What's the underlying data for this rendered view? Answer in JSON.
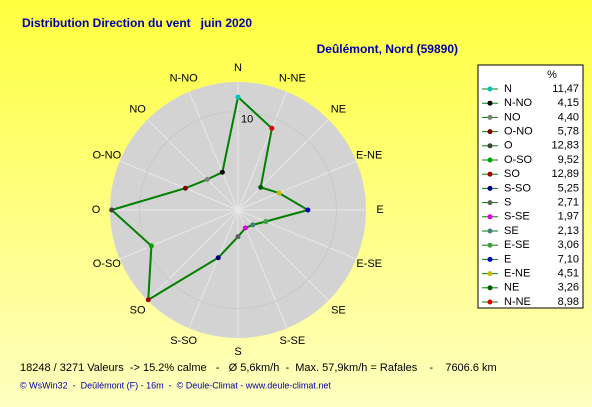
{
  "chart_data": {
    "type": "radar",
    "title": "Distribution Direction du vent   juin 2020",
    "subtitle": "Deûlémont, Nord (59890)",
    "legend_header": "%",
    "categories": [
      "N",
      "N-NO",
      "NO",
      "O-NO",
      "O",
      "O-SO",
      "SO",
      "S-SO",
      "S",
      "S-SE",
      "SE",
      "E-SE",
      "E",
      "E-NE",
      "NE",
      "N-NE"
    ],
    "values": [
      11.47,
      4.15,
      4.4,
      5.78,
      12.83,
      9.52,
      12.89,
      5.25,
      2.71,
      1.97,
      2.13,
      3.06,
      7.1,
      4.51,
      3.26,
      8.98
    ],
    "value_labels": [
      "11,47",
      "4,15",
      "4,40",
      "5,78",
      "12,83",
      "9,52",
      "12,89",
      "5,25",
      "2,71",
      "1,97",
      "2,13",
      "3,06",
      "7,10",
      "4,51",
      "3,26",
      "8,98"
    ],
    "colors": [
      "#00c0c0",
      "#000000",
      "#808080",
      "#800000",
      "#404040",
      "#00a000",
      "#a00000",
      "#000080",
      "#606060",
      "#e000e0",
      "#408080",
      "#40a040",
      "#0000c0",
      "#c0c000",
      "#006000",
      "#e00000"
    ],
    "line_color": "#008000",
    "rlim": [
      0,
      13
    ],
    "rticks": [
      10
    ],
    "footer": "18248 / 3271 Valeurs  -> 15.2% calme   -   Ø 5,6km/h  -  Max. 57,9km/h = Rafales    -    7606.6 km",
    "credit": "© WsWin32  -  Deûlémont (F) - 16m  -  © Deule-Climat - www.deule-climat.net"
  }
}
